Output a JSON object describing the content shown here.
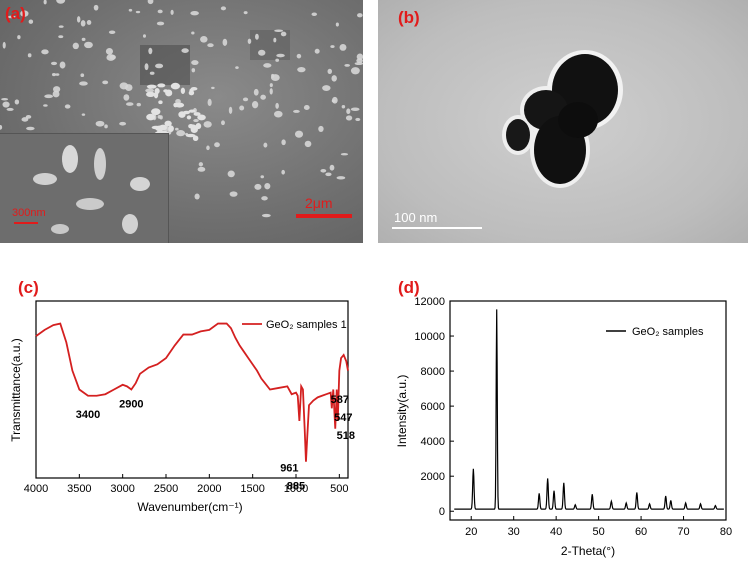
{
  "panels": {
    "a": {
      "label": "(a)",
      "scale_main": "2μm",
      "scale_inset": "300nm"
    },
    "b": {
      "label": "(b)",
      "scale": "100 nm"
    },
    "c": {
      "label": "(c)"
    },
    "d": {
      "label": "(d)"
    }
  },
  "chart_data": [
    {
      "type": "line",
      "xlabel": "Wavenumber(cm⁻¹)",
      "ylabel": "Transmittance(a.u.)",
      "xlim": [
        4000,
        400
      ],
      "x_ticks": [
        4000,
        3500,
        3000,
        2500,
        2000,
        1500,
        1000,
        500
      ],
      "series": [
        {
          "name": "GeO₂ samples 1",
          "x": [
            4000,
            3900,
            3800,
            3720,
            3650,
            3580,
            3500,
            3400,
            3300,
            3200,
            3100,
            3000,
            2950,
            2900,
            2850,
            2800,
            2700,
            2600,
            2500,
            2400,
            2300,
            2200,
            2100,
            2000,
            1900,
            1800,
            1750,
            1700,
            1650,
            1600,
            1550,
            1500,
            1450,
            1400,
            1300,
            1200,
            1100,
            1050,
            1000,
            980,
            961,
            940,
            920,
            900,
            885,
            870,
            850,
            800,
            750,
            700,
            650,
            600,
            587,
            570,
            547,
            530,
            518,
            500,
            480,
            450,
            420,
            400
          ],
          "y": [
            0.84,
            0.88,
            0.91,
            0.92,
            0.8,
            0.62,
            0.5,
            0.46,
            0.46,
            0.47,
            0.5,
            0.53,
            0.52,
            0.5,
            0.54,
            0.6,
            0.64,
            0.66,
            0.7,
            0.78,
            0.85,
            0.85,
            0.87,
            0.88,
            0.92,
            0.92,
            0.89,
            0.83,
            0.78,
            0.74,
            0.7,
            0.66,
            0.62,
            0.57,
            0.5,
            0.51,
            0.52,
            0.47,
            0.48,
            0.46,
            0.3,
            0.52,
            0.5,
            0.25,
            0.04,
            0.2,
            0.4,
            0.43,
            0.45,
            0.46,
            0.47,
            0.48,
            0.38,
            0.5,
            0.25,
            0.5,
            0.3,
            0.62,
            0.7,
            0.72,
            0.68,
            0.62
          ]
        }
      ],
      "annotations": [
        {
          "text": "3400",
          "x": 3400
        },
        {
          "text": "2900",
          "x": 2900
        },
        {
          "text": "961",
          "x": 961
        },
        {
          "text": "885",
          "x": 885
        },
        {
          "text": "587",
          "x": 587
        },
        {
          "text": "547",
          "x": 547
        },
        {
          "text": "518",
          "x": 518
        }
      ],
      "line_color": "#d42020"
    },
    {
      "type": "line",
      "xlabel": "2-Theta(°)",
      "ylabel": "Intensity(a.u.)",
      "xlim": [
        15,
        80
      ],
      "ylim": [
        -500,
        12000
      ],
      "x_ticks": [
        20,
        30,
        40,
        50,
        60,
        70,
        80
      ],
      "y_ticks": [
        0,
        2000,
        4000,
        6000,
        8000,
        10000,
        12000
      ],
      "peaks": [
        {
          "x": 20.5,
          "y": 2300
        },
        {
          "x": 26.0,
          "y": 11400
        },
        {
          "x": 36.0,
          "y": 900
        },
        {
          "x": 38.0,
          "y": 1750
        },
        {
          "x": 39.5,
          "y": 1050
        },
        {
          "x": 41.8,
          "y": 1500
        },
        {
          "x": 44.5,
          "y": 250
        },
        {
          "x": 48.5,
          "y": 850
        },
        {
          "x": 53.0,
          "y": 450
        },
        {
          "x": 56.5,
          "y": 350
        },
        {
          "x": 59.0,
          "y": 950
        },
        {
          "x": 62.0,
          "y": 300
        },
        {
          "x": 65.8,
          "y": 750
        },
        {
          "x": 67.0,
          "y": 500
        },
        {
          "x": 70.5,
          "y": 350
        },
        {
          "x": 74.0,
          "y": 300
        },
        {
          "x": 77.5,
          "y": 200
        }
      ],
      "series": [
        {
          "name": "GeO₂ samples"
        }
      ],
      "line_color": "#000000"
    }
  ]
}
